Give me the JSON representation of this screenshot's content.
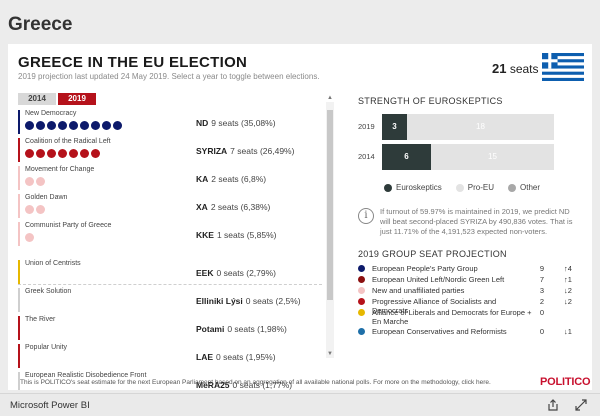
{
  "country": "Greece",
  "title": "GREECE IN THE EU ELECTION",
  "subtitle": "2019 projection last updated 24 May 2019. Select a year to toggle between elections.",
  "seats_total": {
    "number": "21",
    "unit": "seats"
  },
  "year_tabs": [
    {
      "label": "2014",
      "active": false
    },
    {
      "label": "2019",
      "active": true
    }
  ],
  "parties": [
    {
      "name": "New Democracy",
      "abbr": "ND",
      "seats_text": "9 seats (35,08%)",
      "seats": 9,
      "color": "#0d1a6b",
      "accent": "#0d1a6b"
    },
    {
      "name": "Coalition of the Radical Left",
      "abbr": "SYRIZA",
      "seats_text": "7 seats (26,49%)",
      "seats": 7,
      "color": "#b5121b",
      "accent": "#b5121b"
    },
    {
      "name": "Movement for Change",
      "abbr": "KA",
      "seats_text": "2 seats (6,8%)",
      "seats": 2,
      "color": "#f4c4c4",
      "accent": "#f4c4c4"
    },
    {
      "name": "Golden Dawn",
      "abbr": "XA",
      "seats_text": "2 seats (6,38%)",
      "seats": 2,
      "color": "#f4c4c4",
      "accent": "#f4c4c4"
    },
    {
      "name": "Communist Party of Greece",
      "abbr": "KKE",
      "seats_text": "1 seats (5,85%)",
      "seats": 1,
      "color": "#f4c4c4",
      "accent": "#f4c4c4"
    },
    {
      "name": "Union of Centrists",
      "abbr": "EEK",
      "seats_text": "0 seats (2,79%)",
      "seats": 0,
      "color": "#e6b800",
      "accent": "#e6b800"
    },
    {
      "name": "Greek Solution",
      "abbr": "Elliniki Lýsi",
      "seats_text": "0 seats (2,5%)",
      "seats": 0,
      "color": "#cfcfcf",
      "accent": "#cfcfcf"
    },
    {
      "name": "The River",
      "abbr": "Potami",
      "seats_text": "0 seats (1,98%)",
      "seats": 0,
      "color": "#b5121b",
      "accent": "#b5121b"
    },
    {
      "name": "Popular Unity",
      "abbr": "LAE",
      "seats_text": "0 seats (1,95%)",
      "seats": 0,
      "color": "#b5121b",
      "accent": "#b5121b"
    },
    {
      "name": "European Realistic Disobedience Front",
      "abbr": "MeRA25",
      "seats_text": "0 seats (1,77%)",
      "seats": 0,
      "color": "#cfcfcf",
      "accent": "#cfcfcf"
    }
  ],
  "euroskeptics": {
    "title": "STRENGTH OF EUROSKEPTICS",
    "rows": [
      {
        "year": "2019",
        "skeptic": 3,
        "pro": 18,
        "other": 0
      },
      {
        "year": "2014",
        "skeptic": 6,
        "pro": 15,
        "other": 0
      }
    ],
    "legend": [
      {
        "label": "Euroskeptics",
        "color": "#2e3b3a"
      },
      {
        "label": "Pro-EU",
        "color": "#e3e3e3"
      },
      {
        "label": "Other",
        "color": "#a8a8a8"
      }
    ]
  },
  "info_text": "If turnout of 59.97% is maintained in 2019, we predict ND will beat second-placed SYRIZA by 490,836 votes. That is just 11.71% of the 4,191,523 expected non-voters.",
  "projection": {
    "title": "2019 GROUP SEAT PROJECTION",
    "groups": [
      {
        "name": "European People's Party Group",
        "seats": "9",
        "change": "↑4",
        "color": "#0d1a6b"
      },
      {
        "name": "European United Left/Nordic Green Left",
        "seats": "7",
        "change": "↑1",
        "color": "#8b0f0f"
      },
      {
        "name": "New and unaffiliated parties",
        "seats": "3",
        "change": "↓2",
        "color": "#f4c4c4"
      },
      {
        "name": "Progressive Alliance of Socialists and Democrats",
        "seats": "2",
        "change": "↓2",
        "color": "#b5121b"
      },
      {
        "name": "Alliance of Liberals and Democrats for Europe + En Marche",
        "seats": "0",
        "change": "",
        "color": "#e6b800"
      },
      {
        "name": "European Conservatives and Reformists",
        "seats": "0",
        "change": "↓1",
        "color": "#1e6fa8"
      }
    ]
  },
  "footnote": "This is POLITICO's seat estimate for the next European Parliament based on an aggregation of all available national polls. For more on the methodology, click here.",
  "brand": "POLITICO",
  "bottom_bar": {
    "label": "Microsoft Power BI"
  }
}
